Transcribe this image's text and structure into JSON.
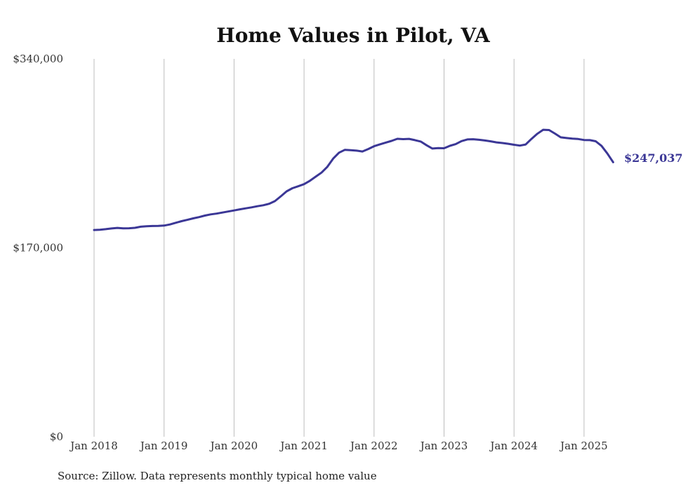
{
  "chart_data": {
    "type": "line",
    "title": "Home Values in Pilot, VA",
    "xlabel": "",
    "ylabel": "",
    "ylim": [
      0,
      340000
    ],
    "y_tick_labels": [
      "$0",
      "$170,000",
      "$340,000"
    ],
    "y_ticks": [
      0,
      170000,
      340000
    ],
    "x_tick_labels": [
      "Jan 2018",
      "Jan 2019",
      "Jan 2020",
      "Jan 2021",
      "Jan 2022",
      "Jan 2023",
      "Jan 2024",
      "Jan 2025"
    ],
    "xlim": [
      "2018-01",
      "2025-06"
    ],
    "grid": "vertical",
    "line_color": "#3b3796",
    "end_label": "$247,037",
    "series": [
      {
        "x": [
          "2018-01",
          "2018-02",
          "2018-03",
          "2018-04",
          "2018-05",
          "2018-06",
          "2018-07",
          "2018-08",
          "2018-09",
          "2018-10",
          "2018-11",
          "2018-12",
          "2019-01",
          "2019-02",
          "2019-03",
          "2019-04",
          "2019-05",
          "2019-06",
          "2019-07",
          "2019-08",
          "2019-09",
          "2019-10",
          "2019-11",
          "2019-12",
          "2020-01",
          "2020-02",
          "2020-03",
          "2020-04",
          "2020-05",
          "2020-06",
          "2020-07",
          "2020-08",
          "2020-09",
          "2020-10",
          "2020-11",
          "2020-12",
          "2021-01",
          "2021-02",
          "2021-03",
          "2021-04",
          "2021-05",
          "2021-06",
          "2021-07",
          "2021-08",
          "2021-09",
          "2021-10",
          "2021-11",
          "2021-12",
          "2022-01",
          "2022-02",
          "2022-03",
          "2022-04",
          "2022-05",
          "2022-06",
          "2022-07",
          "2022-08",
          "2022-09",
          "2022-10",
          "2022-11",
          "2022-12",
          "2023-01",
          "2023-02",
          "2023-03",
          "2023-04",
          "2023-05",
          "2023-06",
          "2023-07",
          "2023-08",
          "2023-09",
          "2023-10",
          "2023-11",
          "2023-12",
          "2024-01",
          "2024-02",
          "2024-03",
          "2024-04",
          "2024-05",
          "2024-06",
          "2024-07",
          "2024-08",
          "2024-09",
          "2024-10",
          "2024-11",
          "2024-12",
          "2025-01",
          "2025-02",
          "2025-03",
          "2025-04",
          "2025-05",
          "2025-06"
        ],
        "values": [
          186000,
          186300,
          186800,
          187400,
          187900,
          187500,
          187600,
          188000,
          189000,
          189400,
          189600,
          189700,
          190000,
          191000,
          192500,
          194000,
          195200,
          196500,
          197600,
          199000,
          200100,
          200800,
          201700,
          202700,
          203600,
          204600,
          205500,
          206400,
          207400,
          208300,
          209600,
          212000,
          216300,
          220800,
          223600,
          225400,
          227300,
          230300,
          234000,
          237700,
          242900,
          250300,
          255600,
          258200,
          257900,
          257400,
          256700,
          258900,
          261400,
          263100,
          264700,
          266200,
          268100,
          267800,
          268000,
          266900,
          265600,
          262300,
          259300,
          259700,
          259600,
          261800,
          263300,
          266000,
          267500,
          267700,
          267200,
          266600,
          265800,
          264900,
          264300,
          263600,
          262700,
          262000,
          263000,
          268000,
          272600,
          276200,
          276000,
          272800,
          269400,
          268800,
          268200,
          267900,
          267000,
          266900,
          265900,
          261700,
          254900,
          247037
        ]
      }
    ]
  },
  "footer": {
    "source_note": "Source: Zillow. Data represents monthly typical home value"
  }
}
